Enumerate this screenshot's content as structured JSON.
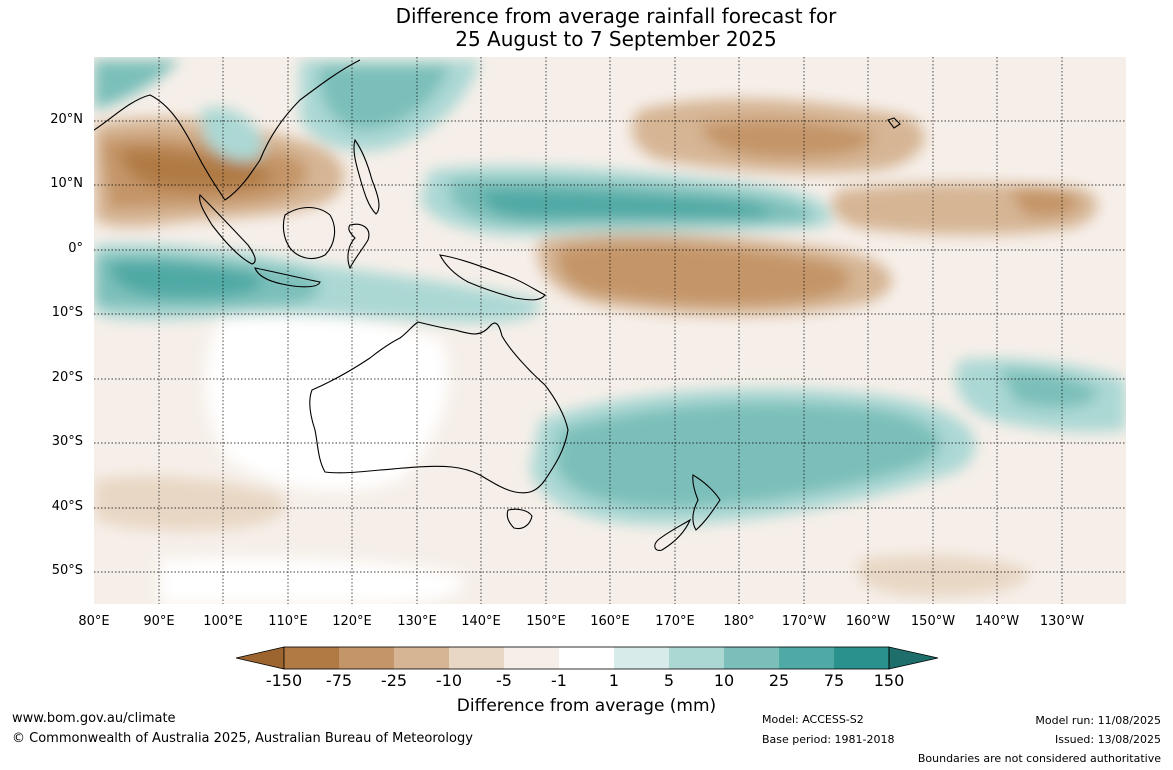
{
  "title": {
    "line1": "Difference from average rainfall forecast for",
    "line2": "25 August to 7 September 2025"
  },
  "map": {
    "lat_labels": [
      "20°N",
      "10°N",
      "0°",
      "10°S",
      "20°S",
      "30°S",
      "40°S",
      "50°S"
    ],
    "lon_labels": [
      "80°E",
      "90°E",
      "100°E",
      "110°E",
      "120°E",
      "130°E",
      "140°E",
      "150°E",
      "160°E",
      "170°E",
      "180°",
      "170°W",
      "160°W",
      "150°W",
      "140°W",
      "130°W"
    ]
  },
  "colorbar": {
    "labels": [
      "-150",
      "-75",
      "-25",
      "-10",
      "-5",
      "-1",
      "1",
      "5",
      "10",
      "25",
      "75",
      "150"
    ],
    "colors": [
      "#9c6530",
      "#b07a44",
      "#c49568",
      "#d6b594",
      "#e8d7c4",
      "#f6efe9",
      "#ffffff",
      "#d6ebea",
      "#acd8d4",
      "#7cbfba",
      "#4fa9a4",
      "#2b918c",
      "#1e6f6b"
    ],
    "title": "Difference from average (mm)"
  },
  "footer": {
    "website": "www.bom.gov.au/climate",
    "copyright": "© Commonwealth of Australia 2025, Australian Bureau of Meteorology",
    "model": "Model: ACCESS-S2",
    "base_period": "Base period: 1981-2018",
    "model_run": "Model run: 11/08/2025",
    "issued": "Issued: 13/08/2025",
    "disclaimer": "Boundaries are not considered authoritative"
  }
}
